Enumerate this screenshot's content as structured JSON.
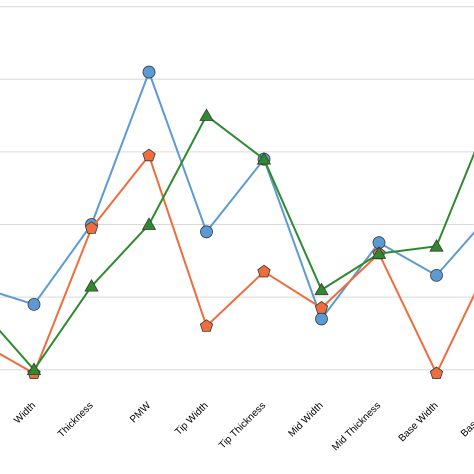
{
  "chart_data": {
    "type": "line",
    "categories": [
      "Width",
      "Thickness",
      "PMW",
      "Tip Width",
      "Tip Thickness",
      "Mid Width",
      "Mid Thickness",
      "Base Width",
      "Base Thic"
    ],
    "ylim": [
      0,
      10
    ],
    "grid": true,
    "series": [
      {
        "color": "#5b9bd5",
        "marker": "circle",
        "values_leading_offscreen": [
          2.5
        ],
        "values": [
          2.0,
          4.2,
          8.4,
          4.0,
          6.0,
          1.6,
          3.7,
          2.8,
          4.6
        ]
      },
      {
        "color": "#ed6d3d",
        "marker": "pentagon",
        "values_leading_offscreen": [
          1.0
        ],
        "values": [
          0.1,
          4.1,
          6.1,
          1.4,
          2.9,
          1.9,
          3.4,
          0.1,
          3.4
        ]
      },
      {
        "color": "#2f8a2f",
        "marker": "triangle",
        "values_leading_offscreen": [
          2.0
        ],
        "values": [
          0.2,
          2.5,
          4.2,
          7.2,
          6.0,
          2.4,
          3.4,
          3.6,
          7.5
        ]
      }
    ]
  }
}
